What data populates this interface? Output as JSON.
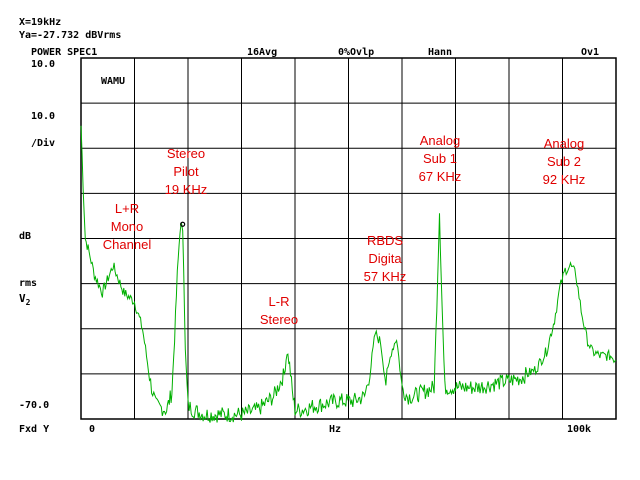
{
  "readout": {
    "x": "X=19kHz",
    "ya": "Ya=-27.732 dBVrms"
  },
  "header": {
    "measurement": "POWER SPEC1",
    "averaging": "16Avg",
    "overlap": "0%Ovlp",
    "window": "Hann",
    "overload": "Ov1"
  },
  "y_axis": {
    "top": "10.0",
    "scale_value": "10.0",
    "scale_unit": "/Div",
    "unit_db": "dB",
    "unit_rms": "rms",
    "unit_v": "V",
    "unit_v_sub": "2",
    "bottom": "-70.0",
    "fxd": "Fxd Y"
  },
  "x_axis": {
    "left": "0",
    "unit": "Hz",
    "right": "100k"
  },
  "trace_label": "WAMU",
  "annotations": {
    "stereo_pilot": [
      "Stereo",
      "Pilot",
      "19 KHz"
    ],
    "mono": [
      "L+R",
      "Mono",
      "Channel"
    ],
    "lr_stereo": [
      "L-R",
      "Stereo"
    ],
    "rbds": [
      "RBDS",
      "Digita",
      "57 KHz"
    ],
    "sub1": [
      "Analog",
      "Sub 1",
      "67 KHz"
    ],
    "sub2": [
      "Analog",
      "Sub 2",
      "92 KHz"
    ]
  },
  "colors": {
    "trace": "#00b000",
    "annotation": "#e00000",
    "grid": "#000000"
  },
  "chart_data": {
    "type": "line",
    "title": "POWER SPEC1",
    "xlabel": "Hz",
    "ylabel": "dB rms V2",
    "xlim": [
      0,
      100000
    ],
    "ylim": [
      -70,
      10
    ],
    "y_per_div": 10,
    "grid": true,
    "marker": {
      "x": 19000,
      "y": -27.732
    },
    "series": [
      {
        "x": [
          0,
          400,
          800,
          1500,
          2500,
          4000,
          6000,
          8000,
          10000,
          11500,
          13000,
          14000,
          15000,
          16000,
          16500,
          17000,
          17500,
          18000,
          18500,
          18800,
          19000,
          19200,
          19500,
          20000,
          21000,
          23000,
          26000,
          30000,
          33000,
          36000,
          38000,
          38500,
          39000,
          39500,
          40000,
          41000,
          44000,
          48000,
          51000,
          53000,
          54000,
          55000,
          56000,
          57000,
          58000,
          59000,
          60000,
          61000,
          62000,
          64000,
          66000,
          66500,
          67000,
          67500,
          68000,
          70000,
          74000,
          78000,
          82000,
          85000,
          87000,
          88500,
          89500,
          90500,
          91500,
          92500,
          93500,
          94500,
          95500,
          97000,
          99000,
          100000
        ],
        "y": [
          -5,
          -18,
          -30,
          -33,
          -38,
          -42,
          -36,
          -42,
          -44,
          -50,
          -62,
          -67,
          -67.5,
          -68,
          -66,
          -64,
          -52,
          -38,
          -28,
          -27.7,
          -27.732,
          -36,
          -55,
          -67,
          -68,
          -69,
          -69,
          -69,
          -68,
          -65,
          -60,
          -55,
          -58,
          -64,
          -68,
          -68,
          -67,
          -66,
          -66,
          -65,
          -60,
          -51,
          -53,
          -62,
          -55,
          -52,
          -63,
          -65,
          -65,
          -64,
          -63,
          -45,
          -24,
          -45,
          -63,
          -63,
          -63,
          -62,
          -61,
          -59,
          -55,
          -48,
          -41,
          -37,
          -36,
          -38,
          -46,
          -52,
          -55,
          -56,
          -56,
          -57
        ]
      }
    ]
  }
}
